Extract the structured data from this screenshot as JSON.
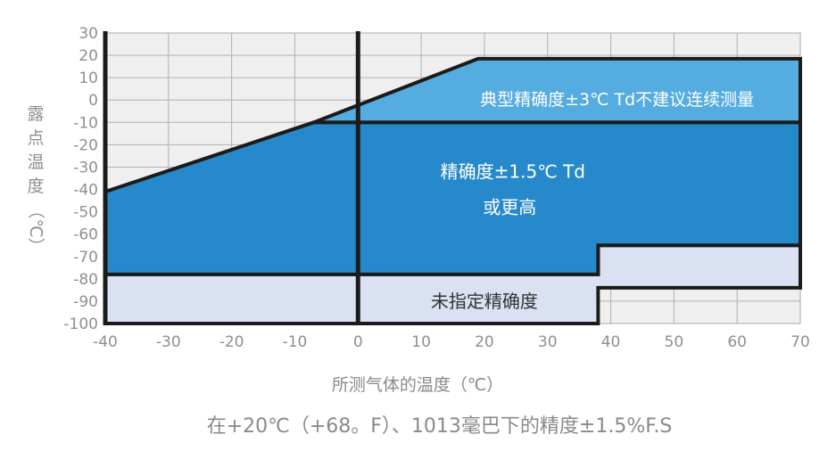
{
  "caption": "在+20℃（+68。F）、1013毫巴下的精度±1.5%F.S",
  "chart_data": {
    "type": "area",
    "title": "",
    "xlabel": "所测气体的温度（℃）",
    "ylabel": "露点温度（℃）",
    "ylabel_upright": "露点温度",
    "ylabel_rotated": "（℃）",
    "xlim": [
      -40,
      70
    ],
    "ylim": [
      -100,
      30
    ],
    "x_ticks": [
      -40,
      -30,
      -20,
      -10,
      0,
      10,
      20,
      30,
      40,
      50,
      60,
      70
    ],
    "y_ticks": [
      30,
      20,
      10,
      0,
      -10,
      -20,
      -30,
      -40,
      -50,
      -60,
      -70,
      -80,
      -90,
      -100
    ],
    "grid": true,
    "colors": {
      "plot_bg": "#f0efef",
      "gridline": "#b0b0b0",
      "plot_border": "#a8a8a8",
      "region_outline": "#1b1b1b",
      "axis_line": "#1b1b1b",
      "tick_text": "#8f8f8f",
      "typical_fill": "#54ace0",
      "high_fill": "#2689cb",
      "unspecified_fill": "#d9e1f2"
    },
    "regions": [
      {
        "name": "unspecified-accuracy-region",
        "label": "未指定精确度",
        "fill": "#d9e1f2",
        "points": [
          [
            -40,
            -78
          ],
          [
            38,
            -78
          ],
          [
            38,
            -65
          ],
          [
            70,
            -65
          ],
          [
            70,
            -84
          ],
          [
            38,
            -84
          ],
          [
            38,
            -100
          ],
          [
            -40,
            -100
          ]
        ]
      },
      {
        "name": "high-accuracy-region",
        "label": "精确度±1.5℃ Td 或更高",
        "fill": "#2689cb",
        "points": [
          [
            -40,
            -41
          ],
          [
            -7,
            -10
          ],
          [
            70,
            -10
          ],
          [
            70,
            -65
          ],
          [
            38,
            -65
          ],
          [
            38,
            -78
          ],
          [
            -40,
            -78
          ]
        ]
      },
      {
        "name": "typical-accuracy-region",
        "label": "典型精确度±3℃ Td不建议连续测量",
        "fill": "#54ace0",
        "points": [
          [
            -7,
            -10
          ],
          [
            19,
            18.5
          ],
          [
            70,
            18.5
          ],
          [
            70,
            -10
          ]
        ]
      }
    ],
    "region_labels": [
      {
        "text": "典型精确度±3℃ Td不建议连续测量",
        "x": 41,
        "y": 0,
        "color": "#ffffff",
        "size": 19
      },
      {
        "text": "精确度±1.5℃ Td",
        "x": 24.5,
        "y": -32,
        "color": "#ffffff",
        "size": 20
      },
      {
        "text": "或更高",
        "x": 24,
        "y": -48,
        "color": "#ffffff",
        "size": 20
      },
      {
        "text": "未指定精确度",
        "x": 20,
        "y": -90,
        "color": "#333333",
        "size": 20
      }
    ],
    "reference_lines": [
      {
        "name": "y-axis-line",
        "x": -40,
        "width": 5
      },
      {
        "name": "zero-reference-line",
        "x": 0,
        "width": 5
      }
    ]
  }
}
